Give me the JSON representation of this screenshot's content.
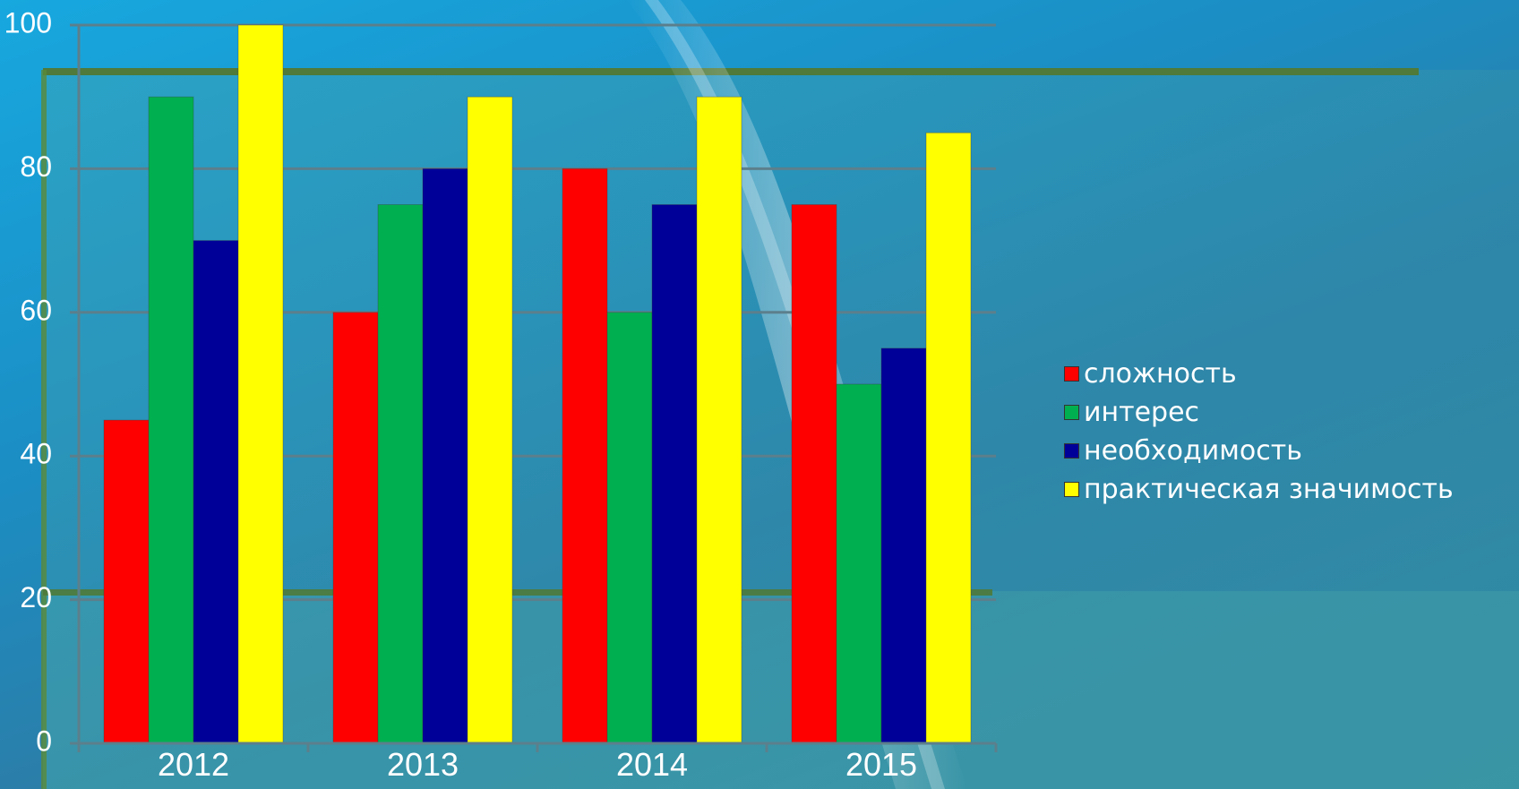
{
  "chart_data": {
    "type": "bar",
    "categories": [
      "2012",
      "2013",
      "2014",
      "2015"
    ],
    "series": [
      {
        "name": "сложность",
        "color": "#ff0000",
        "values": [
          45,
          60,
          80,
          75
        ]
      },
      {
        "name": "интерес",
        "color": "#00b050",
        "values": [
          90,
          75,
          60,
          50
        ]
      },
      {
        "name": "необходимость",
        "color": "#000099",
        "values": [
          70,
          80,
          75,
          55
        ]
      },
      {
        "name": "практическая значимость",
        "color": "#ffff00",
        "values": [
          100,
          90,
          90,
          85
        ]
      }
    ],
    "title": "",
    "xlabel": "",
    "ylabel": "",
    "ylim": [
      0,
      100
    ],
    "yticks": [
      0,
      20,
      40,
      60,
      80,
      100
    ],
    "grid": true,
    "legend": "right"
  }
}
